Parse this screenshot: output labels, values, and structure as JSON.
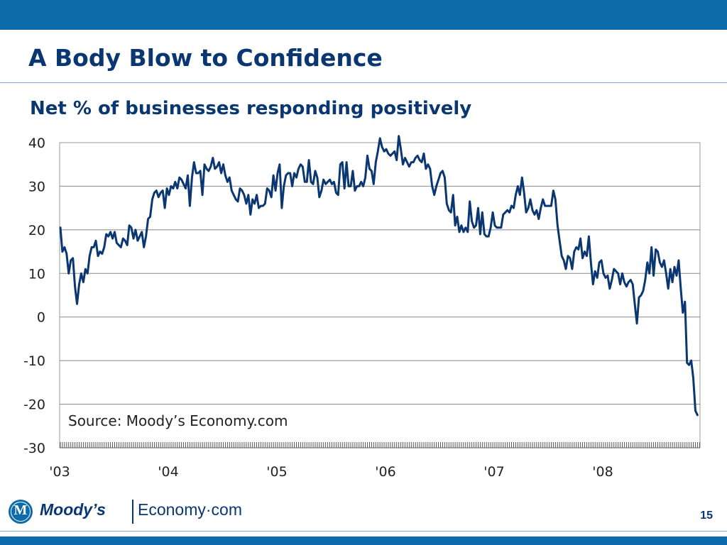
{
  "slide": {
    "title": "A Body Blow to Confidence",
    "subtitle": "Net % of businesses responding positively",
    "page_number": "15"
  },
  "logo": {
    "emblem_letter": "M",
    "brand": "Moody’s",
    "product": "Economy·com"
  },
  "colors": {
    "bars": "#0d6bab",
    "title": "#0a3672",
    "line": "#0a3672",
    "grid": "#888888"
  },
  "chart_data": {
    "type": "line",
    "title": "Net % of businesses responding positively",
    "xlabel": "",
    "ylabel": "",
    "ylim": [
      -30,
      40
    ],
    "yticks": [
      40,
      30,
      20,
      10,
      0,
      -10,
      -20,
      -30
    ],
    "xticks": [
      "'03",
      "'04",
      "'05",
      "'06",
      "'07",
      "'08"
    ],
    "x_start": "2003-01",
    "frequency": "weekly",
    "grid": true,
    "legend": "none",
    "annotation": "Source: Moody’s Economy.com",
    "series": [
      {
        "values": [
          20.5,
          15,
          16,
          14.5,
          10,
          13,
          13.5,
          7,
          3,
          7.5,
          10,
          8,
          11,
          10,
          14,
          16,
          16,
          17.5,
          14,
          15,
          14.5,
          16,
          19,
          18.5,
          19.5,
          18,
          19.5,
          17,
          16.5,
          16,
          18,
          17.5,
          16.5,
          21,
          20.5,
          18,
          20,
          17.5,
          18.5,
          19.5,
          16,
          18.5,
          22.5,
          23,
          27,
          28.5,
          29,
          27.5,
          28.5,
          29,
          25,
          29.5,
          28,
          30,
          29.5,
          31,
          29.5,
          32,
          31.5,
          30.5,
          29.5,
          32.5,
          25.5,
          32,
          35.5,
          33,
          33,
          33.5,
          28,
          35,
          34,
          33.5,
          34.5,
          36.5,
          34,
          34.5,
          35.5,
          33,
          35,
          32.5,
          31,
          32,
          29,
          28,
          27,
          26.5,
          29.5,
          29,
          28,
          26,
          28,
          23.5,
          27,
          26,
          28,
          25,
          25.5,
          25.5,
          26,
          29.5,
          29,
          27.5,
          32.5,
          29,
          33,
          35,
          25,
          30,
          32.5,
          33,
          33,
          30,
          33,
          32,
          34,
          35,
          34.5,
          31,
          31,
          36,
          31,
          30.5,
          33.5,
          32,
          27.5,
          29,
          31.5,
          30.5,
          31,
          31.5,
          30.5,
          31,
          28.5,
          28,
          35,
          35.5,
          29.5,
          35.5,
          30,
          30,
          33.5,
          29,
          30,
          30,
          31,
          30,
          32,
          37,
          34,
          33.5,
          30.5,
          35.5,
          38,
          41,
          39,
          38,
          38.5,
          37.5,
          37,
          37.5,
          38,
          36,
          41.5,
          38.5,
          35,
          36.5,
          35.5,
          34.5,
          35.5,
          35.5,
          36.5,
          37,
          36,
          35.5,
          37.5,
          34,
          35,
          34,
          30,
          28,
          30,
          31.5,
          33,
          33.5,
          32,
          26,
          24.5,
          24,
          28,
          21,
          23,
          19.5,
          21,
          19.5,
          20.5,
          19.5,
          26.5,
          22,
          20.5,
          21,
          25,
          19,
          24,
          19,
          18.5,
          18.5,
          20.5,
          24,
          21,
          20.5,
          20.5,
          20.5,
          23.5,
          24,
          24.5,
          24,
          25.5,
          25,
          28,
          30,
          28,
          32,
          28.5,
          24,
          25,
          27,
          24.5,
          23.5,
          24.5,
          22.5,
          25,
          27,
          25.5,
          25.5,
          25.5,
          25.5,
          29,
          27,
          21,
          17.5,
          14,
          13,
          11,
          14,
          13.5,
          11,
          15,
          16,
          15.5,
          18,
          13.5,
          15,
          14,
          18.5,
          12.5,
          7.5,
          10.5,
          9,
          12.5,
          13,
          10,
          9,
          9.5,
          6.5,
          8.5,
          11,
          10.5,
          10,
          7.5,
          10,
          8,
          7,
          8,
          8.5,
          7.5,
          3,
          -1.5,
          4.5,
          5,
          6,
          8.5,
          12.5,
          10,
          16,
          9.5,
          15.5,
          15,
          12.5,
          11.5,
          13,
          10,
          6.5,
          11,
          8,
          11.5,
          9.5,
          13,
          6.5,
          1,
          3.5,
          -10.5,
          -11,
          -10,
          -14,
          -21.5,
          -22.5
        ]
      }
    ]
  }
}
